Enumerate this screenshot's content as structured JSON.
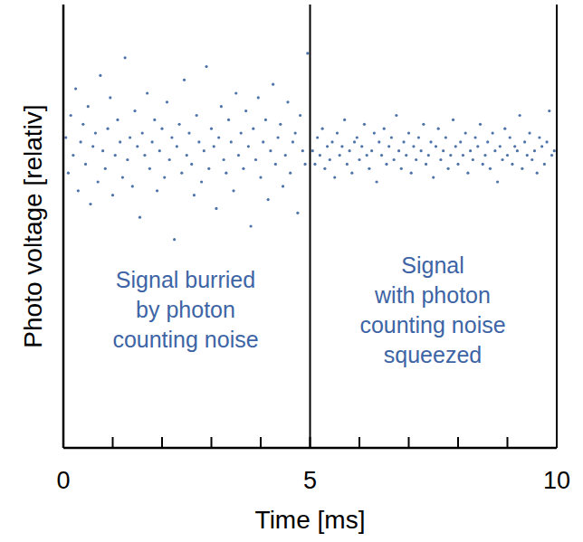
{
  "chart_data": {
    "type": "scatter",
    "x_label": "Time [ms]",
    "y_label": "Photo voltage [relativ]",
    "xlim": [
      0,
      10
    ],
    "xticks": [
      0,
      5,
      10
    ],
    "x_minor_ticks": [
      1,
      2,
      3,
      4,
      6,
      7,
      8,
      9
    ],
    "ylim": [
      0,
      100
    ],
    "tick_labels": "x",
    "grid": false,
    "divider_x": 5,
    "annotations": [
      {
        "lines": [
          "Signal burried",
          "by photon",
          "counting noise"
        ]
      },
      {
        "lines": [
          "Signal",
          "with photon",
          "counting noise",
          "squeezed"
        ]
      }
    ],
    "series": [
      {
        "color": "#2e5b9a",
        "marker": "dot",
        "x": [
          0.05,
          0.1,
          0.15,
          0.2,
          0.25,
          0.3,
          0.35,
          0.4,
          0.45,
          0.5,
          0.55,
          0.6,
          0.65,
          0.7,
          0.75,
          0.8,
          0.85,
          0.9,
          0.95,
          1,
          1.05,
          1.1,
          1.15,
          1.2,
          1.25,
          1.3,
          1.35,
          1.4,
          1.45,
          1.5,
          1.55,
          1.6,
          1.65,
          1.7,
          1.75,
          1.8,
          1.85,
          1.9,
          1.95,
          2,
          2.05,
          2.1,
          2.15,
          2.2,
          2.25,
          2.3,
          2.35,
          2.4,
          2.45,
          2.5,
          2.55,
          2.6,
          2.65,
          2.7,
          2.75,
          2.8,
          2.85,
          2.9,
          2.95,
          3,
          3.05,
          3.1,
          3.15,
          3.2,
          3.25,
          3.3,
          3.35,
          3.4,
          3.45,
          3.5,
          3.55,
          3.6,
          3.65,
          3.7,
          3.75,
          3.8,
          3.85,
          3.9,
          3.95,
          4,
          4.05,
          4.1,
          4.15,
          4.2,
          4.25,
          4.3,
          4.35,
          4.4,
          4.45,
          4.5,
          4.55,
          4.6,
          4.65,
          4.7,
          4.75,
          4.8,
          4.85,
          4.9,
          4.95
        ],
        "values": [
          70,
          62,
          75,
          66,
          81,
          58,
          69,
          73,
          64,
          77,
          55,
          68,
          71,
          60,
          84,
          67,
          63,
          72,
          79,
          57,
          66,
          74,
          69,
          61,
          88,
          65,
          70,
          59,
          76,
          68,
          52,
          71,
          66,
          80,
          63,
          69,
          74,
          58,
          67,
          72,
          61,
          78,
          65,
          70,
          47,
          68,
          73,
          62,
          83,
          66,
          71,
          64,
          57,
          75,
          69,
          60,
          67,
          86,
          63,
          72,
          68,
          54,
          70,
          77,
          65,
          62,
          74,
          69,
          58,
          80,
          66,
          71,
          63,
          76,
          68,
          50,
          72,
          65,
          79,
          61,
          69,
          74,
          56,
          67,
          82,
          64,
          70,
          73,
          59,
          66,
          78,
          62,
          69,
          71,
          53,
          75,
          67,
          64,
          89
        ]
      },
      {
        "color": "#2e5b9a",
        "marker": "dot",
        "x": [
          5.05,
          5.1,
          5.15,
          5.2,
          5.25,
          5.3,
          5.35,
          5.4,
          5.45,
          5.5,
          5.55,
          5.6,
          5.65,
          5.7,
          5.75,
          5.8,
          5.85,
          5.9,
          5.95,
          6,
          6.05,
          6.1,
          6.15,
          6.2,
          6.25,
          6.3,
          6.35,
          6.4,
          6.45,
          6.5,
          6.55,
          6.6,
          6.65,
          6.7,
          6.75,
          6.8,
          6.85,
          6.9,
          6.95,
          7,
          7.05,
          7.1,
          7.15,
          7.2,
          7.25,
          7.3,
          7.35,
          7.4,
          7.45,
          7.5,
          7.55,
          7.6,
          7.65,
          7.7,
          7.75,
          7.8,
          7.85,
          7.9,
          7.95,
          8,
          8.05,
          8.1,
          8.15,
          8.2,
          8.25,
          8.3,
          8.35,
          8.4,
          8.45,
          8.5,
          8.55,
          8.6,
          8.65,
          8.7,
          8.75,
          8.8,
          8.85,
          8.9,
          8.95,
          9,
          9.05,
          9.1,
          9.15,
          9.2,
          9.25,
          9.3,
          9.35,
          9.4,
          9.45,
          9.5,
          9.55,
          9.6,
          9.65,
          9.7,
          9.75,
          9.8,
          9.85,
          9.9,
          9.95
        ],
        "values": [
          67,
          64,
          70,
          66,
          72,
          63,
          68,
          65,
          69,
          61,
          71,
          66,
          68,
          74,
          64,
          67,
          62,
          69,
          70,
          65,
          68,
          73,
          66,
          63,
          67,
          71,
          60,
          69,
          66,
          72,
          64,
          68,
          70,
          65,
          75,
          67,
          63,
          69,
          66,
          71,
          62,
          68,
          65,
          70,
          67,
          73,
          64,
          66,
          69,
          61,
          68,
          72,
          65,
          67,
          70,
          63,
          66,
          74,
          68,
          64,
          69,
          66,
          71,
          62,
          67,
          65,
          70,
          68,
          73,
          64,
          66,
          69,
          63,
          71,
          67,
          60,
          68,
          65,
          72,
          66,
          70,
          64,
          68,
          67,
          75,
          63,
          69,
          66,
          71,
          65,
          67,
          62,
          70,
          68,
          64,
          69,
          76,
          66,
          67
        ]
      }
    ]
  }
}
